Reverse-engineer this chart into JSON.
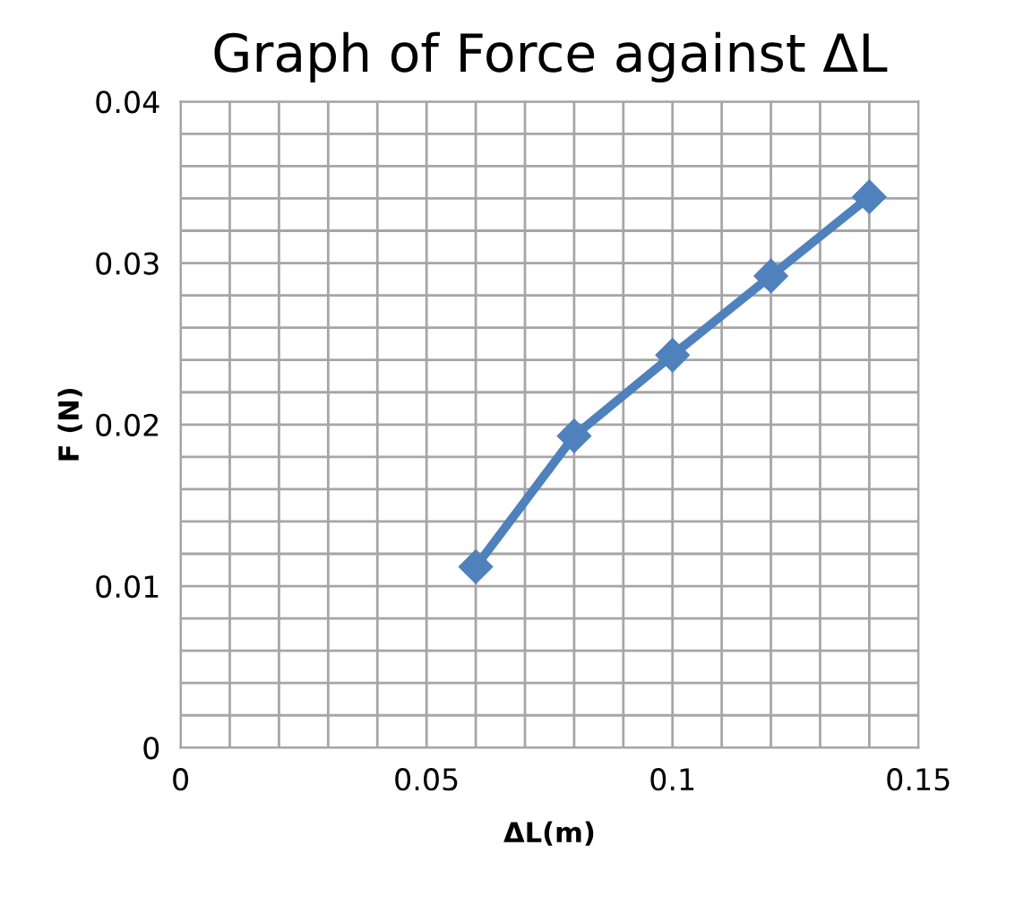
{
  "chart_data": {
    "type": "line",
    "title": "Graph of Force against ΔL",
    "xlabel": "ΔL(m)",
    "ylabel": "F (N)",
    "x": [
      0.06,
      0.08,
      0.1,
      0.12,
      0.14
    ],
    "series": [
      {
        "color": "#4f81bd",
        "values": [
          0.0112,
          0.0193,
          0.0243,
          0.0292,
          0.0341
        ]
      }
    ],
    "marker": "diamond",
    "line_style": "solid",
    "grid": true,
    "legend": false,
    "xlim": [
      0,
      0.15
    ],
    "ylim": [
      0,
      0.04
    ],
    "xticks": [
      0,
      {
        "value": 0.01,
        "label": null
      },
      {
        "value": 0.02,
        "label": null
      },
      {
        "value": 0.03,
        "label": null
      },
      {
        "value": 0.04,
        "label": null
      },
      0.05,
      {
        "value": 0.06,
        "label": null
      },
      {
        "value": 0.07,
        "label": null
      },
      {
        "value": 0.08,
        "label": null
      },
      {
        "value": 0.09,
        "label": null
      },
      0.1,
      {
        "value": 0.11,
        "label": null
      },
      {
        "value": 0.12,
        "label": null
      },
      {
        "value": 0.13,
        "label": null
      },
      {
        "value": 0.14,
        "label": null
      },
      0.15
    ],
    "yticks": [
      0,
      {
        "value": 0.002,
        "label": null
      },
      {
        "value": 0.004,
        "label": null
      },
      {
        "value": 0.006,
        "label": null
      },
      {
        "value": 0.008,
        "label": null
      },
      0.01,
      {
        "value": 0.012,
        "label": null
      },
      {
        "value": 0.014,
        "label": null
      },
      {
        "value": 0.016,
        "label": null
      },
      {
        "value": 0.018,
        "label": null
      },
      0.02,
      {
        "value": 0.022,
        "label": null
      },
      {
        "value": 0.024,
        "label": null
      },
      {
        "value": 0.026,
        "label": null
      },
      {
        "value": 0.028,
        "label": null
      },
      0.03,
      {
        "value": 0.032,
        "label": null
      },
      {
        "value": 0.034,
        "label": null
      },
      {
        "value": 0.036,
        "label": null
      },
      {
        "value": 0.038,
        "label": null
      },
      0.04
    ]
  }
}
